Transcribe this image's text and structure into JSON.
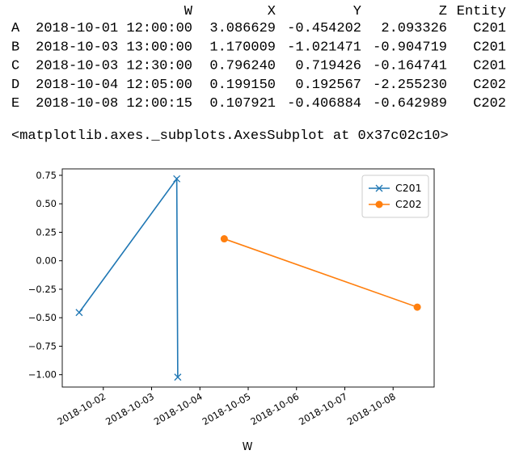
{
  "table": {
    "columns": [
      "W",
      "X",
      "Y",
      "Z",
      "Entity"
    ],
    "rows": [
      {
        "index": "A",
        "cells": [
          "2018-10-01 12:00:00",
          "3.086629",
          "-0.454202",
          "2.093326",
          "C201"
        ]
      },
      {
        "index": "B",
        "cells": [
          "2018-10-03 13:00:00",
          "1.170009",
          "-1.021471",
          "-0.904719",
          "C201"
        ]
      },
      {
        "index": "C",
        "cells": [
          "2018-10-03 12:30:00",
          "0.796240",
          "0.719426",
          "-0.164741",
          "C201"
        ]
      },
      {
        "index": "D",
        "cells": [
          "2018-10-04 12:05:00",
          "0.199150",
          "0.192567",
          "-2.255230",
          "C202"
        ]
      },
      {
        "index": "E",
        "cells": [
          "2018-10-08 12:00:15",
          "0.107921",
          "-0.406884",
          "-0.642989",
          "C202"
        ]
      }
    ]
  },
  "repr": "<matplotlib.axes._subplots.AxesSubplot at 0x37c02c10>",
  "chart_data": {
    "type": "line",
    "xlabel": "W",
    "series": [
      {
        "name": "C201",
        "color": "#1f77b4",
        "marker": "x",
        "x": [
          "2018-10-01 12:00:00",
          "2018-10-03 12:30:00",
          "2018-10-03 13:00:00"
        ],
        "values": [
          -0.454202,
          0.719426,
          -1.021471
        ]
      },
      {
        "name": "C202",
        "color": "#ff7f0e",
        "marker": "o",
        "x": [
          "2018-10-04 12:05:00",
          "2018-10-08 12:00:15"
        ],
        "values": [
          0.192567,
          -0.406884
        ]
      }
    ],
    "xlim": [
      "2018-10-01 03:36:00",
      "2018-10-08 20:24:00"
    ],
    "xticks": [
      "2018-10-02",
      "2018-10-03",
      "2018-10-04",
      "2018-10-05",
      "2018-10-06",
      "2018-10-07",
      "2018-10-08"
    ],
    "ylim": [
      -1.1085,
      0.8065
    ],
    "yticks": [
      {
        "value": -1,
        "label": "−1.00"
      },
      {
        "value": -0.75,
        "label": "−0.75"
      },
      {
        "value": -0.5,
        "label": "−0.50"
      },
      {
        "value": -0.25,
        "label": "−0.25"
      },
      {
        "value": 0,
        "label": "0.00"
      },
      0.25,
      {
        "value": 0.5,
        "label": "0.50"
      },
      0.75
    ],
    "legend": "upper right",
    "grid": false
  }
}
